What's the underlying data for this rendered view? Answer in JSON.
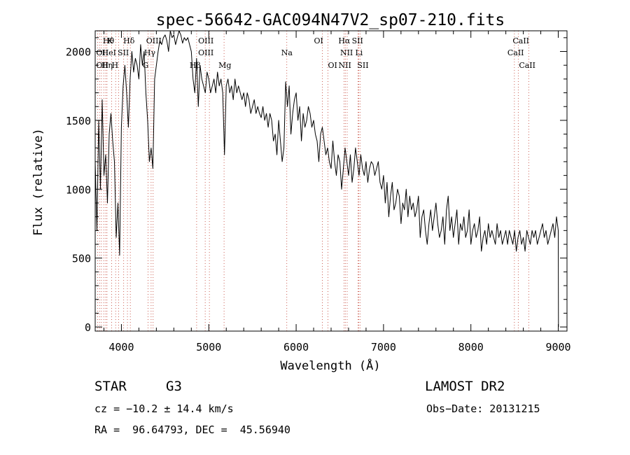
{
  "chart_data": {
    "type": "line",
    "title": "spec-56642-GAC094N47V2_sp07-210.fits",
    "xlabel": "Wavelength (Å)",
    "ylabel": "Flux (relative)",
    "xlim": [
      3700,
      9100
    ],
    "ylim": [
      -30,
      2150
    ],
    "x_ticks": [
      4000,
      5000,
      6000,
      7000,
      8000,
      9000
    ],
    "y_ticks": [
      0,
      500,
      1000,
      1500,
      2000
    ],
    "grid": false,
    "legend": "none",
    "line_color": "#000000",
    "marker_line_color": "#c0392b",
    "spectrum": {
      "x": [
        3700,
        3720,
        3740,
        3760,
        3780,
        3800,
        3820,
        3840,
        3860,
        3880,
        3900,
        3920,
        3940,
        3960,
        3980,
        4000,
        4020,
        4040,
        4060,
        4080,
        4100,
        4120,
        4140,
        4160,
        4180,
        4200,
        4220,
        4240,
        4260,
        4280,
        4300,
        4320,
        4340,
        4360,
        4380,
        4400,
        4420,
        4440,
        4460,
        4480,
        4500,
        4520,
        4540,
        4560,
        4580,
        4600,
        4620,
        4640,
        4660,
        4680,
        4700,
        4720,
        4740,
        4760,
        4780,
        4800,
        4820,
        4840,
        4860,
        4880,
        4900,
        4920,
        4940,
        4960,
        4980,
        5000,
        5020,
        5040,
        5060,
        5080,
        5100,
        5120,
        5140,
        5160,
        5180,
        5200,
        5220,
        5240,
        5260,
        5280,
        5300,
        5320,
        5340,
        5360,
        5380,
        5400,
        5420,
        5440,
        5460,
        5480,
        5500,
        5520,
        5540,
        5560,
        5580,
        5600,
        5620,
        5640,
        5660,
        5680,
        5700,
        5720,
        5740,
        5760,
        5780,
        5800,
        5820,
        5840,
        5860,
        5880,
        5900,
        5920,
        5940,
        5960,
        5980,
        6000,
        6020,
        6040,
        6060,
        6080,
        6100,
        6120,
        6140,
        6160,
        6180,
        6200,
        6220,
        6240,
        6260,
        6280,
        6300,
        6320,
        6340,
        6360,
        6380,
        6400,
        6420,
        6440,
        6460,
        6480,
        6500,
        6520,
        6540,
        6560,
        6580,
        6600,
        6620,
        6640,
        6660,
        6680,
        6700,
        6720,
        6740,
        6760,
        6780,
        6800,
        6820,
        6840,
        6860,
        6880,
        6900,
        6920,
        6940,
        6960,
        6980,
        7000,
        7020,
        7040,
        7060,
        7080,
        7100,
        7120,
        7140,
        7160,
        7180,
        7200,
        7220,
        7240,
        7260,
        7280,
        7300,
        7320,
        7340,
        7360,
        7380,
        7400,
        7420,
        7440,
        7460,
        7480,
        7500,
        7520,
        7540,
        7560,
        7580,
        7600,
        7620,
        7640,
        7660,
        7680,
        7700,
        7720,
        7740,
        7760,
        7780,
        7800,
        7820,
        7840,
        7860,
        7880,
        7900,
        7920,
        7940,
        7960,
        7980,
        8000,
        8020,
        8040,
        8060,
        8080,
        8100,
        8120,
        8140,
        8160,
        8180,
        8200,
        8220,
        8240,
        8260,
        8280,
        8300,
        8320,
        8340,
        8360,
        8380,
        8400,
        8420,
        8440,
        8460,
        8480,
        8500,
        8520,
        8540,
        8560,
        8580,
        8600,
        8620,
        8640,
        8660,
        8680,
        8700,
        8720,
        8740,
        8760,
        8780,
        8800,
        8820,
        8840,
        8860,
        8880,
        8900,
        8920,
        8940,
        8960,
        8980,
        9000,
        9002
      ],
      "y": [
        1200,
        700,
        1500,
        1000,
        1650,
        1100,
        1250,
        900,
        1400,
        1550,
        1350,
        1200,
        650,
        900,
        520,
        1450,
        1750,
        1900,
        1700,
        1450,
        1800,
        2000,
        1850,
        1950,
        1900,
        1800,
        2050,
        1900,
        2000,
        1700,
        1500,
        1200,
        1300,
        1150,
        1800,
        1900,
        2000,
        2080,
        2050,
        2100,
        2120,
        2080,
        2000,
        2150,
        2100,
        2120,
        2050,
        2100,
        2150,
        2120,
        2060,
        2100,
        2080,
        2100,
        2050,
        2000,
        1800,
        1700,
        1950,
        1600,
        1900,
        1800,
        1750,
        1700,
        1850,
        1800,
        1700,
        1750,
        1800,
        1700,
        1850,
        1750,
        1800,
        1700,
        1250,
        1750,
        1800,
        1700,
        1750,
        1650,
        1800,
        1700,
        1750,
        1700,
        1650,
        1700,
        1600,
        1700,
        1650,
        1550,
        1600,
        1650,
        1550,
        1600,
        1550,
        1520,
        1600,
        1500,
        1550,
        1450,
        1550,
        1500,
        1350,
        1400,
        1250,
        1500,
        1350,
        1200,
        1300,
        1780,
        1600,
        1750,
        1400,
        1550,
        1650,
        1700,
        1500,
        1600,
        1350,
        1550,
        1450,
        1500,
        1600,
        1550,
        1450,
        1500,
        1400,
        1350,
        1200,
        1400,
        1450,
        1350,
        1250,
        1300,
        1200,
        1150,
        1350,
        1200,
        1100,
        1250,
        1200,
        1000,
        1150,
        1300,
        1200,
        1100,
        1250,
        1050,
        1150,
        1300,
        1200,
        1100,
        1250,
        1150,
        1100,
        1200,
        1050,
        1150,
        1200,
        1180,
        1100,
        1150,
        1200,
        1050,
        1000,
        1100,
        900,
        1050,
        800,
        950,
        1050,
        850,
        900,
        1000,
        950,
        750,
        900,
        850,
        1000,
        800,
        950,
        850,
        900,
        800,
        850,
        950,
        650,
        800,
        850,
        700,
        600,
        750,
        850,
        700,
        800,
        900,
        750,
        650,
        700,
        800,
        600,
        850,
        950,
        700,
        800,
        650,
        750,
        850,
        600,
        750,
        700,
        800,
        650,
        700,
        850,
        600,
        700,
        750,
        650,
        700,
        800,
        550,
        650,
        700,
        600,
        750,
        650,
        700,
        650,
        600,
        750,
        650,
        700,
        600,
        650,
        700,
        600,
        700,
        650,
        600,
        700,
        550,
        650,
        700,
        600,
        650,
        550,
        700,
        650,
        600,
        700,
        650,
        700,
        600,
        650,
        700,
        750,
        650,
        700,
        600,
        650,
        700,
        750,
        650,
        800,
        700,
        0
      ]
    },
    "line_markers": [
      {
        "label": "Hθ",
        "x": 3771,
        "row": 0,
        "dx": 2
      },
      {
        "label": "K",
        "x": 3820,
        "row": 0,
        "dx": 2
      },
      {
        "label": "Hδ",
        "x": 4102,
        "row": 0,
        "dx": -10
      },
      {
        "label": "OIII",
        "x": 4363,
        "row": 0,
        "dx": -10
      },
      {
        "label": "OIII",
        "x": 4959,
        "row": 0,
        "dx": -10
      },
      {
        "label": "OI",
        "x": 6300,
        "row": 0,
        "dx": -12
      },
      {
        "label": "Hα",
        "x": 6563,
        "row": 0,
        "dx": -10
      },
      {
        "label": "SII",
        "x": 6717,
        "row": 0,
        "dx": -10
      },
      {
        "label": "CaII",
        "x": 8542,
        "row": 0,
        "dx": -8
      },
      {
        "label": "OII",
        "x": 3727,
        "row": 1,
        "dx": -2
      },
      {
        "label": "HeI",
        "x": 3889,
        "row": 1,
        "dx": -14
      },
      {
        "label": "SII",
        "x": 4069,
        "row": 1,
        "dx": -14
      },
      {
        "label": "Hγ",
        "x": 4340,
        "row": 1,
        "dx": -10
      },
      {
        "label": "OIII",
        "x": 5007,
        "row": 1,
        "dx": -16
      },
      {
        "label": "Na",
        "x": 5893,
        "row": 1,
        "dx": -8
      },
      {
        "label": "NII",
        "x": 6584,
        "row": 1,
        "dx": -10
      },
      {
        "label": "Li",
        "x": 6708,
        "row": 1,
        "dx": -4
      },
      {
        "label": "CaII",
        "x": 8498,
        "row": 1,
        "dx": -10
      },
      {
        "label": "OII",
        "x": 3727,
        "row": 2,
        "dx": -2
      },
      {
        "label": "Hη",
        "x": 3835,
        "row": 2,
        "dx": -8
      },
      {
        "label": "H",
        "x": 3968,
        "row": 2,
        "dx": -10
      },
      {
        "label": "G",
        "x": 4305,
        "row": 2,
        "dx": -8
      },
      {
        "label": "Hβ",
        "x": 4861,
        "row": 2,
        "dx": -10
      },
      {
        "label": "Mg",
        "x": 5175,
        "row": 2,
        "dx": -8
      },
      {
        "label": "OI",
        "x": 6364,
        "row": 2,
        "dx": 0
      },
      {
        "label": "NII",
        "x": 6548,
        "row": 2,
        "dx": -8
      },
      {
        "label": "SII",
        "x": 6731,
        "row": 2,
        "dx": -4
      },
      {
        "label": "CaII",
        "x": 8662,
        "row": 2,
        "dx": -14
      }
    ],
    "line_positions": [
      3727,
      3750,
      3771,
      3798,
      3820,
      3835,
      3889,
      3934,
      3968,
      4026,
      4069,
      4102,
      4305,
      4340,
      4363,
      4861,
      4959,
      5007,
      5175,
      5893,
      6300,
      6364,
      6548,
      6563,
      6584,
      6708,
      6717,
      6731,
      8498,
      8542,
      8662
    ]
  },
  "info": {
    "object_class": "STAR",
    "subclass": "G3",
    "survey": "LAMOST DR2",
    "redshift_text": "cz = −10.2 ± 14.4 km/s",
    "obs_date_text": "Obs−Date: 20131215",
    "coords_text": "RA =  96.64793, DEC =  45.56940"
  }
}
